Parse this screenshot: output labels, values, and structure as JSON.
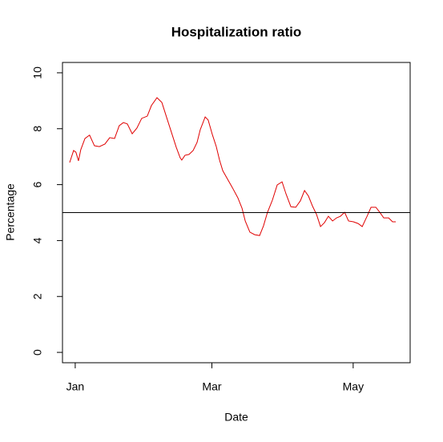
{
  "chart_data": {
    "type": "line",
    "title": "Hospitalization ratio",
    "x_label": "Date",
    "y_label": "Percentage",
    "x": [
      -2.4,
      -0.7,
      0.3,
      1.4,
      2.4,
      4.2,
      6.2,
      8.3,
      10.4,
      12.8,
      14.9,
      17.0,
      19.0,
      20.8,
      22.5,
      24.6,
      26.6,
      28.7,
      31.1,
      32.9,
      35.3,
      37.4,
      39.4,
      41.5,
      43.6,
      45.3,
      46.0,
      47.4,
      49.1,
      50.9,
      52.6,
      54.0,
      56.1,
      57.4,
      59.2,
      60.9,
      62.3,
      63.7,
      65.4,
      67.8,
      70.2,
      72.0,
      73.4,
      75.4,
      77.5,
      79.6,
      81.3,
      83.0,
      85.1,
      87.2,
      89.3,
      91.0,
      93.1,
      95.2,
      97.2,
      99.0,
      100.7,
      102.4,
      104.2,
      105.9,
      107.6,
      109.3,
      111.1,
      112.8,
      114.5,
      116.3,
      118.0,
      120.1,
      122.1,
      123.9,
      126.0,
      127.7,
      129.8,
      131.5,
      133.2,
      135.3,
      137.0,
      138.4
    ],
    "series": [
      {
        "color": "#e00000",
        "values": [
          6.79,
          7.22,
          7.16,
          6.85,
          7.25,
          7.65,
          7.77,
          7.39,
          7.36,
          7.45,
          7.68,
          7.65,
          8.11,
          8.22,
          8.17,
          7.82,
          8.02,
          8.37,
          8.45,
          8.83,
          9.11,
          8.94,
          8.42,
          7.88,
          7.34,
          6.96,
          6.88,
          7.05,
          7.08,
          7.22,
          7.51,
          7.97,
          8.42,
          8.31,
          7.79,
          7.36,
          6.88,
          6.5,
          6.25,
          5.9,
          5.53,
          5.16,
          4.7,
          4.3,
          4.21,
          4.18,
          4.53,
          5.01,
          5.44,
          5.99,
          6.1,
          5.67,
          5.21,
          5.19,
          5.42,
          5.79,
          5.59,
          5.24,
          4.93,
          4.5,
          4.64,
          4.87,
          4.7,
          4.81,
          4.87,
          5.01,
          4.7,
          4.67,
          4.61,
          4.5,
          4.87,
          5.19,
          5.19,
          5.01,
          4.81,
          4.81,
          4.67,
          4.67
        ]
      }
    ],
    "hline": 5,
    "xlim": [
      -5.5,
      144.6
    ],
    "xticks": [
      {
        "value": 0,
        "label": "Jan"
      },
      {
        "value": 59,
        "label": "Mar"
      },
      {
        "value": 120,
        "label": "May"
      }
    ],
    "ylim": [
      -0.37,
      10.37
    ],
    "yticks": [
      0,
      2,
      4,
      6,
      8,
      10
    ]
  }
}
